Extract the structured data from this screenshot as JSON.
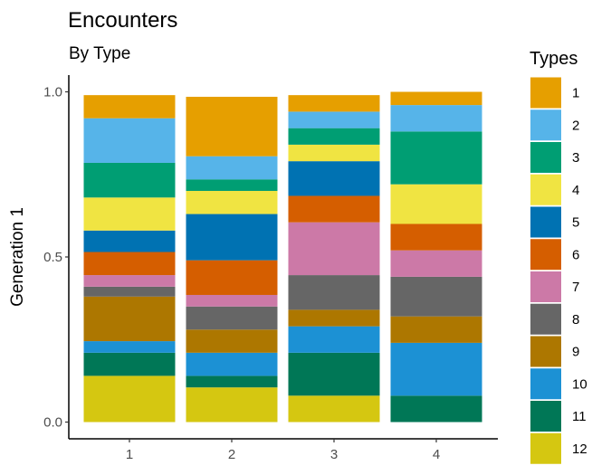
{
  "chart_data": {
    "type": "bar",
    "stacked": true,
    "title": "Encounters",
    "subtitle": "By Type",
    "xlabel": "",
    "ylabel": "Generation 1",
    "ylim": [
      0,
      1
    ],
    "yticks": [
      "0.0",
      "0.5",
      "1.0"
    ],
    "grid": false,
    "legend_title": "Types",
    "legend_position": "right",
    "categories": [
      "1",
      "2",
      "3",
      "4"
    ],
    "series": [
      {
        "name": "1",
        "color": "#E69F00",
        "values": [
          0.07,
          0.18,
          0.05,
          0.04
        ]
      },
      {
        "name": "2",
        "color": "#56B4E9",
        "values": [
          0.135,
          0.07,
          0.05,
          0.08
        ]
      },
      {
        "name": "3",
        "color": "#009E73",
        "values": [
          0.105,
          0.035,
          0.05,
          0.16
        ]
      },
      {
        "name": "4",
        "color": "#F0E442",
        "values": [
          0.1,
          0.07,
          0.05,
          0.12
        ]
      },
      {
        "name": "5",
        "color": "#0072B2",
        "values": [
          0.065,
          0.14,
          0.105,
          0.0
        ]
      },
      {
        "name": "6",
        "color": "#D55E00",
        "values": [
          0.07,
          0.105,
          0.08,
          0.08
        ]
      },
      {
        "name": "7",
        "color": "#CC79A7",
        "values": [
          0.035,
          0.035,
          0.16,
          0.08
        ]
      },
      {
        "name": "8",
        "color": "#666666",
        "values": [
          0.03,
          0.07,
          0.105,
          0.12
        ]
      },
      {
        "name": "9",
        "color": "#AD7700",
        "values": [
          0.135,
          0.07,
          0.05,
          0.08
        ]
      },
      {
        "name": "10",
        "color": "#1C91D4",
        "values": [
          0.035,
          0.07,
          0.08,
          0.16
        ]
      },
      {
        "name": "11",
        "color": "#007756",
        "values": [
          0.07,
          0.035,
          0.13,
          0.08
        ]
      },
      {
        "name": "12",
        "color": "#D5C711",
        "values": [
          0.14,
          0.105,
          0.08,
          0.0
        ]
      }
    ]
  }
}
